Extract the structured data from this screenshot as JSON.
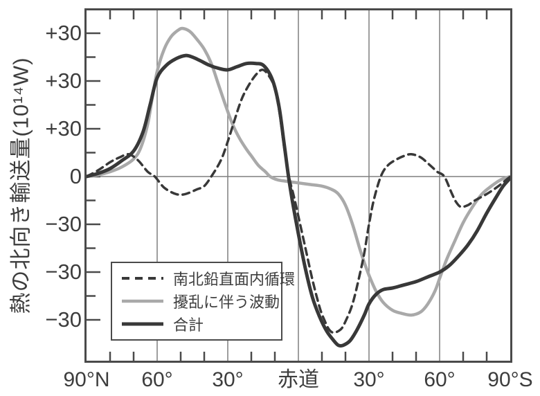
{
  "y_axis": {
    "title": "熱の北向き輸送量(10¹⁴W)",
    "tick_labels": [
      "+30",
      "+30",
      "+30",
      "0",
      "−30",
      "−30",
      "−30"
    ]
  },
  "x_axis": {
    "tick_labels": [
      "90°N",
      "60°",
      "30°",
      "赤道",
      "30°",
      "60°",
      "90°S"
    ]
  },
  "legend": {
    "items": [
      {
        "label": "南北鉛直面内循環",
        "style": "dashed-dark"
      },
      {
        "label": "擾乱に伴う波動",
        "style": "solid-gray"
      },
      {
        "label": "合計",
        "style": "solid-dark"
      }
    ]
  },
  "colors": {
    "dark_line": "#383838",
    "gray_line": "#a9a9a9",
    "axis_frame": "#4a4a4a",
    "grid_line": "#7f7f7f",
    "text": "#3d3d3d"
  },
  "chart_data": {
    "type": "line",
    "title": "",
    "xlabel_ticks": [
      "90°N",
      "60°",
      "30°",
      "赤道",
      "30°",
      "60°",
      "90°S"
    ],
    "ylabel": "熱の北向き輸送量(10¹⁴W)",
    "y_tick_labels_as_shown": [
      "+30",
      "+30",
      "+30",
      "0",
      "−30",
      "−30",
      "−30"
    ],
    "note": "x = latitude in degrees (positive = North, 0 = equator/赤道, negative = South). y is in units of 10^14 W where one major grid division = 30; the printed y tick labels repeat ±30 as shown above.",
    "x_range": [
      90,
      -90
    ],
    "y_range_divisions": [
      -110,
      110
    ],
    "grid": "vertical lines every 30° plus zero line",
    "legend_position": "lower-left",
    "series": [
      {
        "name": "南北鉛直面内循環",
        "line": "dashed dark",
        "points": [
          [
            90,
            0
          ],
          [
            85,
            4
          ],
          [
            80,
            9
          ],
          [
            76,
            12
          ],
          [
            72,
            14
          ],
          [
            68,
            10
          ],
          [
            64,
            3
          ],
          [
            61,
            0
          ],
          [
            57,
            -7
          ],
          [
            52,
            -11
          ],
          [
            48,
            -11
          ],
          [
            43,
            -8
          ],
          [
            40,
            -6
          ],
          [
            37,
            0
          ],
          [
            33,
            10
          ],
          [
            30,
            22
          ],
          [
            25,
            45
          ],
          [
            22,
            55
          ],
          [
            18,
            64
          ],
          [
            15,
            67
          ],
          [
            12,
            62
          ],
          [
            10,
            55
          ],
          [
            8,
            40
          ],
          [
            6,
            18
          ],
          [
            4,
            0
          ],
          [
            2,
            -12
          ],
          [
            0,
            -25
          ],
          [
            -3,
            -45
          ],
          [
            -6,
            -65
          ],
          [
            -9,
            -82
          ],
          [
            -11,
            -90
          ],
          [
            -13,
            -96
          ],
          [
            -15,
            -98
          ],
          [
            -18,
            -96
          ],
          [
            -20,
            -91
          ],
          [
            -23,
            -80
          ],
          [
            -26,
            -62
          ],
          [
            -28,
            -48
          ],
          [
            -30,
            -30
          ],
          [
            -32,
            -15
          ],
          [
            -35,
            0
          ],
          [
            -38,
            7
          ],
          [
            -42,
            11
          ],
          [
            -45,
            13
          ],
          [
            -48,
            14
          ],
          [
            -52,
            12
          ],
          [
            -56,
            7
          ],
          [
            -59,
            3
          ],
          [
            -62,
            0
          ],
          [
            -65,
            -10
          ],
          [
            -67,
            -16
          ],
          [
            -69,
            -19
          ],
          [
            -72,
            -18
          ],
          [
            -75,
            -15
          ],
          [
            -80,
            -11
          ],
          [
            -85,
            -6
          ],
          [
            -90,
            0
          ]
        ]
      },
      {
        "name": "擾乱に伴う波動",
        "line": "solid gray",
        "points": [
          [
            90,
            0
          ],
          [
            85,
            1
          ],
          [
            80,
            3
          ],
          [
            75,
            6
          ],
          [
            70,
            11
          ],
          [
            67,
            18
          ],
          [
            64,
            33
          ],
          [
            62,
            50
          ],
          [
            60,
            66
          ],
          [
            57,
            80
          ],
          [
            54,
            88
          ],
          [
            51,
            92
          ],
          [
            49,
            93
          ],
          [
            46,
            91
          ],
          [
            43,
            86
          ],
          [
            40,
            80
          ],
          [
            37,
            71
          ],
          [
            34,
            58
          ],
          [
            31,
            45
          ],
          [
            28,
            33
          ],
          [
            25,
            24
          ],
          [
            22,
            17
          ],
          [
            20,
            13
          ],
          [
            17,
            7
          ],
          [
            14,
            3
          ],
          [
            12,
            0
          ],
          [
            9,
            -2
          ],
          [
            5,
            -3
          ],
          [
            0,
            -4
          ],
          [
            -5,
            -5
          ],
          [
            -10,
            -6
          ],
          [
            -14,
            -8
          ],
          [
            -17,
            -11
          ],
          [
            -20,
            -18
          ],
          [
            -23,
            -30
          ],
          [
            -26,
            -45
          ],
          [
            -28,
            -54
          ],
          [
            -30,
            -62
          ],
          [
            -33,
            -72
          ],
          [
            -36,
            -79
          ],
          [
            -40,
            -84
          ],
          [
            -44,
            -86
          ],
          [
            -48,
            -87
          ],
          [
            -52,
            -85
          ],
          [
            -55,
            -80
          ],
          [
            -58,
            -72
          ],
          [
            -60,
            -64
          ],
          [
            -63,
            -52
          ],
          [
            -66,
            -42
          ],
          [
            -70,
            -29
          ],
          [
            -74,
            -19
          ],
          [
            -78,
            -11
          ],
          [
            -82,
            -6
          ],
          [
            -86,
            -2
          ],
          [
            -90,
            0
          ]
        ]
      },
      {
        "name": "合計",
        "line": "solid dark thick",
        "points": [
          [
            90,
            0
          ],
          [
            85,
            2
          ],
          [
            80,
            5
          ],
          [
            75,
            10
          ],
          [
            70,
            16
          ],
          [
            66,
            28
          ],
          [
            63,
            45
          ],
          [
            60,
            62
          ],
          [
            56,
            70
          ],
          [
            52,
            74
          ],
          [
            48,
            76
          ],
          [
            45,
            75
          ],
          [
            42,
            73
          ],
          [
            38,
            70
          ],
          [
            34,
            68
          ],
          [
            30,
            67
          ],
          [
            26,
            69
          ],
          [
            22,
            71
          ],
          [
            18,
            71
          ],
          [
            15,
            70
          ],
          [
            12,
            64
          ],
          [
            10,
            56
          ],
          [
            8,
            42
          ],
          [
            6,
            20
          ],
          [
            4,
            -2
          ],
          [
            2,
            -20
          ],
          [
            0,
            -36
          ],
          [
            -3,
            -58
          ],
          [
            -6,
            -76
          ],
          [
            -9,
            -88
          ],
          [
            -12,
            -97
          ],
          [
            -15,
            -103
          ],
          [
            -17,
            -106
          ],
          [
            -19,
            -106
          ],
          [
            -22,
            -103
          ],
          [
            -25,
            -96
          ],
          [
            -28,
            -87
          ],
          [
            -30,
            -80
          ],
          [
            -33,
            -74
          ],
          [
            -36,
            -71
          ],
          [
            -40,
            -70
          ],
          [
            -45,
            -68
          ],
          [
            -50,
            -66
          ],
          [
            -55,
            -63
          ],
          [
            -60,
            -60
          ],
          [
            -64,
            -56
          ],
          [
            -68,
            -50
          ],
          [
            -72,
            -43
          ],
          [
            -76,
            -34
          ],
          [
            -80,
            -23
          ],
          [
            -84,
            -13
          ],
          [
            -87,
            -6
          ],
          [
            -90,
            -1
          ]
        ]
      }
    ]
  }
}
